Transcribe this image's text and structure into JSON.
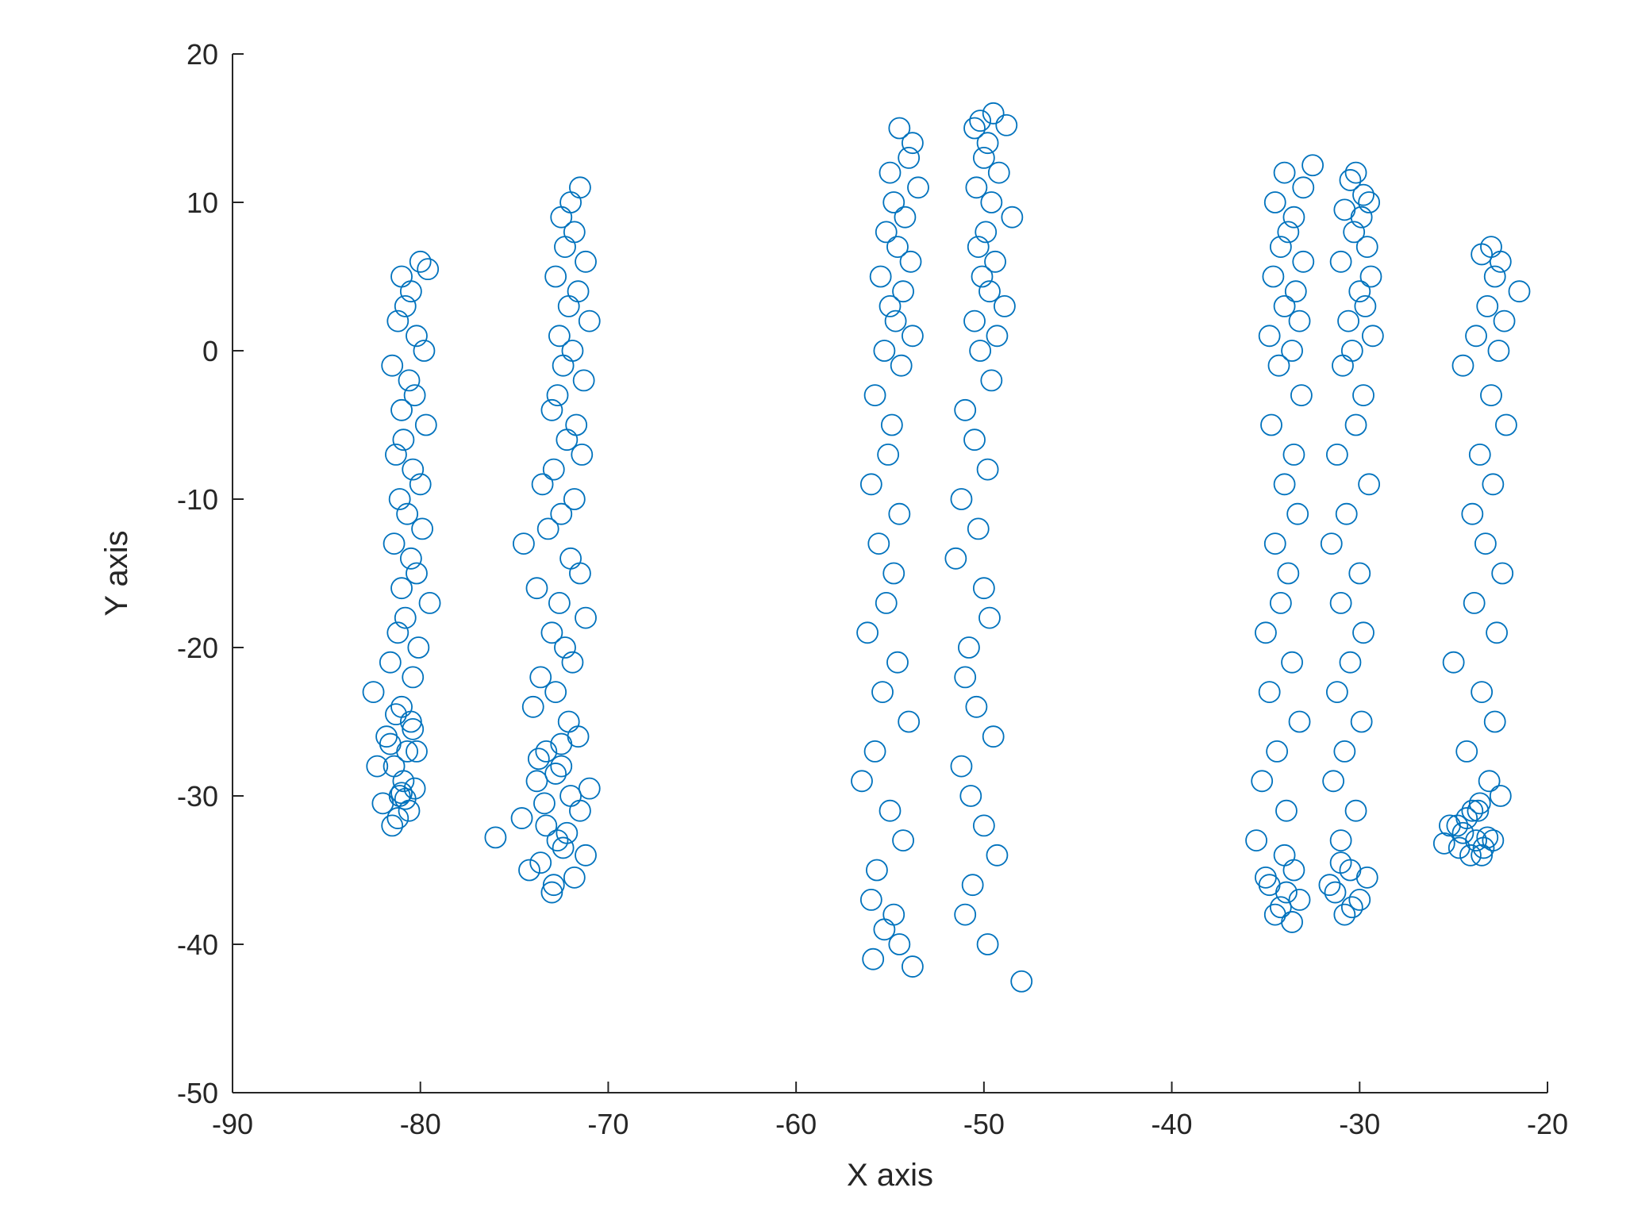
{
  "chart_data": {
    "type": "scatter",
    "title": "",
    "xlabel": "X axis",
    "ylabel": "Y axis",
    "xlim": [
      -90,
      -20
    ],
    "ylim": [
      -50,
      20
    ],
    "xticks": [
      -90,
      -80,
      -70,
      -60,
      -50,
      -40,
      -30,
      -20
    ],
    "yticks": [
      -50,
      -40,
      -30,
      -20,
      -10,
      0,
      10,
      20
    ],
    "grid": false,
    "marker": "circle-open",
    "color": "#0072BD",
    "x": [
      -81.0,
      -80.0,
      -79.6,
      -80.5,
      -80.8,
      -81.2,
      -80.2,
      -79.8,
      -81.5,
      -80.6,
      -80.3,
      -81.0,
      -79.7,
      -80.9,
      -81.3,
      -80.4,
      -80.0,
      -81.1,
      -80.7,
      -79.9,
      -81.4,
      -80.5,
      -80.2,
      -81.0,
      -79.5,
      -80.8,
      -81.2,
      -80.1,
      -81.6,
      -80.4,
      -82.5,
      -81.0,
      -80.5,
      -81.8,
      -80.2,
      -81.4,
      -80.9,
      -81.1,
      -80.6,
      -81.5,
      -82.0,
      -80.3,
      -81.2,
      -80.8,
      -81.0,
      -82.3,
      -80.7,
      -81.6,
      -80.4,
      -81.3,
      -72.0,
      -71.5,
      -72.5,
      -71.8,
      -72.3,
      -71.2,
      -72.8,
      -71.6,
      -72.1,
      -71.0,
      -72.6,
      -71.9,
      -72.4,
      -71.3,
      -72.7,
      -73.0,
      -71.7,
      -72.2,
      -71.4,
      -72.9,
      -73.5,
      -71.8,
      -72.5,
      -73.2,
      -74.5,
      -72.0,
      -71.5,
      -73.8,
      -72.6,
      -71.2,
      -73.0,
      -72.3,
      -71.9,
      -73.6,
      -72.8,
      -74.0,
      -72.1,
      -71.6,
      -73.3,
      -72.5,
      -73.8,
      -72.0,
      -71.5,
      -73.3,
      -72.7,
      -71.2,
      -74.2,
      -72.9,
      -73.6,
      -72.4,
      -71.8,
      -73.0,
      -72.2,
      -74.6,
      -76.0,
      -73.4,
      -71.0,
      -72.8,
      -73.7,
      -72.5,
      -54.5,
      -53.8,
      -54.0,
      -55.0,
      -53.5,
      -54.8,
      -54.2,
      -55.2,
      -54.6,
      -53.9,
      -55.5,
      -54.3,
      -55.0,
      -54.7,
      -53.8,
      -55.3,
      -54.4,
      -55.8,
      -54.9,
      -55.1,
      -56.0,
      -54.5,
      -55.6,
      -54.8,
      -55.2,
      -56.2,
      -54.6,
      -55.4,
      -54.0,
      -55.8,
      -56.5,
      -55.0,
      -54.3,
      -55.7,
      -56.0,
      -54.8,
      -55.3,
      -54.5,
      -55.9,
      -53.8,
      -50.2,
      -49.5,
      -50.5,
      -49.8,
      -48.8,
      -50.0,
      -49.2,
      -50.4,
      -49.6,
      -48.5,
      -49.9,
      -50.3,
      -49.4,
      -50.1,
      -49.7,
      -48.9,
      -50.5,
      -49.3,
      -50.2,
      -49.6,
      -51.0,
      -50.5,
      -49.8,
      -51.2,
      -50.3,
      -51.5,
      -50.0,
      -49.7,
      -50.8,
      -51.0,
      -50.4,
      -49.5,
      -51.2,
      -50.7,
      -50.0,
      -49.3,
      -50.6,
      -51.0,
      -49.8,
      -48.0,
      -34.0,
      -33.0,
      -32.5,
      -34.5,
      -33.5,
      -33.8,
      -34.2,
      -33.0,
      -34.6,
      -33.4,
      -34.0,
      -33.2,
      -34.8,
      -33.6,
      -34.3,
      -33.1,
      -34.7,
      -33.5,
      -34.0,
      -33.3,
      -34.5,
      -33.8,
      -34.2,
      -35.0,
      -33.6,
      -34.8,
      -33.2,
      -34.4,
      -35.2,
      -33.9,
      -35.5,
      -34.0,
      -33.5,
      -34.8,
      -33.2,
      -34.5,
      -33.9,
      -35.0,
      -34.2,
      -33.6,
      -30.5,
      -29.8,
      -30.2,
      -29.5,
      -30.8,
      -29.9,
      -30.3,
      -29.6,
      -31.0,
      -29.4,
      -30.0,
      -29.7,
      -30.6,
      -29.3,
      -30.4,
      -30.9,
      -29.8,
      -30.2,
      -31.2,
      -29.5,
      -30.7,
      -31.5,
      -30.0,
      -31.0,
      -29.8,
      -30.5,
      -31.2,
      -29.9,
      -30.8,
      -31.4,
      -30.2,
      -31.0,
      -30.5,
      -31.6,
      -30.0,
      -30.8,
      -31.3,
      -29.6,
      -30.4,
      -31.0,
      -23.0,
      -22.5,
      -23.5,
      -22.8,
      -21.5,
      -23.2,
      -22.3,
      -23.8,
      -22.6,
      -24.5,
      -23.0,
      -22.2,
      -23.6,
      -22.9,
      -24.0,
      -23.3,
      -22.4,
      -23.9,
      -22.7,
      -25.0,
      -23.5,
      -22.8,
      -24.3,
      -23.1,
      -22.5,
      -23.7,
      -24.8,
      -22.9,
      -23.4,
      -24.1,
      -24.5,
      -23.8,
      -25.2,
      -24.0,
      -23.5,
      -24.7,
      -23.2,
      -25.5,
      -24.3,
      -23.6
    ],
    "y": [
      5.0,
      6.0,
      5.5,
      4.0,
      3.0,
      2.0,
      1.0,
      0.0,
      -1.0,
      -2.0,
      -3.0,
      -4.0,
      -5.0,
      -6.0,
      -7.0,
      -8.0,
      -9.0,
      -10.0,
      -11.0,
      -12.0,
      -13.0,
      -14.0,
      -15.0,
      -16.0,
      -17.0,
      -18.0,
      -19.0,
      -20.0,
      -21.0,
      -22.0,
      -23.0,
      -24.0,
      -25.0,
      -26.0,
      -27.0,
      -28.0,
      -29.0,
      -30.0,
      -31.0,
      -32.0,
      -30.5,
      -29.5,
      -31.5,
      -30.2,
      -29.8,
      -28.0,
      -27.0,
      -26.5,
      -25.5,
      -24.5,
      10.0,
      11.0,
      9.0,
      8.0,
      7.0,
      6.0,
      5.0,
      4.0,
      3.0,
      2.0,
      1.0,
      0.0,
      -1.0,
      -2.0,
      -3.0,
      -4.0,
      -5.0,
      -6.0,
      -7.0,
      -8.0,
      -9.0,
      -10.0,
      -11.0,
      -12.0,
      -13.0,
      -14.0,
      -15.0,
      -16.0,
      -17.0,
      -18.0,
      -19.0,
      -20.0,
      -21.0,
      -22.0,
      -23.0,
      -24.0,
      -25.0,
      -26.0,
      -27.0,
      -28.0,
      -29.0,
      -30.0,
      -31.0,
      -32.0,
      -33.0,
      -34.0,
      -35.0,
      -36.0,
      -34.5,
      -33.5,
      -35.5,
      -36.5,
      -32.5,
      -31.5,
      -32.8,
      -30.5,
      -29.5,
      -28.5,
      -27.5,
      -26.5,
      15.0,
      14.0,
      13.0,
      12.0,
      11.0,
      10.0,
      9.0,
      8.0,
      7.0,
      6.0,
      5.0,
      4.0,
      3.0,
      2.0,
      1.0,
      0.0,
      -1.0,
      -3.0,
      -5.0,
      -7.0,
      -9.0,
      -11.0,
      -13.0,
      -15.0,
      -17.0,
      -19.0,
      -21.0,
      -23.0,
      -25.0,
      -27.0,
      -29.0,
      -31.0,
      -33.0,
      -35.0,
      -37.0,
      -38.0,
      -39.0,
      -40.0,
      -41.0,
      -41.5,
      15.5,
      16.0,
      15.0,
      14.0,
      15.2,
      13.0,
      12.0,
      11.0,
      10.0,
      9.0,
      8.0,
      7.0,
      6.0,
      5.0,
      4.0,
      3.0,
      2.0,
      1.0,
      0.0,
      -2.0,
      -4.0,
      -6.0,
      -8.0,
      -10.0,
      -12.0,
      -14.0,
      -16.0,
      -18.0,
      -20.0,
      -22.0,
      -24.0,
      -26.0,
      -28.0,
      -30.0,
      -32.0,
      -34.0,
      -36.0,
      -38.0,
      -40.0,
      -42.5,
      12.0,
      11.0,
      12.5,
      10.0,
      9.0,
      8.0,
      7.0,
      6.0,
      5.0,
      4.0,
      3.0,
      2.0,
      1.0,
      0.0,
      -1.0,
      -3.0,
      -5.0,
      -7.0,
      -9.0,
      -11.0,
      -13.0,
      -15.0,
      -17.0,
      -19.0,
      -21.0,
      -23.0,
      -25.0,
      -27.0,
      -29.0,
      -31.0,
      -33.0,
      -34.0,
      -35.0,
      -36.0,
      -37.0,
      -38.0,
      -36.5,
      -35.5,
      -37.5,
      -38.5,
      11.5,
      10.5,
      12.0,
      10.0,
      9.5,
      9.0,
      8.0,
      7.0,
      6.0,
      5.0,
      4.0,
      3.0,
      2.0,
      1.0,
      0.0,
      -1.0,
      -3.0,
      -5.0,
      -7.0,
      -9.0,
      -11.0,
      -13.0,
      -15.0,
      -17.0,
      -19.0,
      -21.0,
      -23.0,
      -25.0,
      -27.0,
      -29.0,
      -31.0,
      -33.0,
      -35.0,
      -36.0,
      -37.0,
      -38.0,
      -36.5,
      -35.5,
      -37.5,
      -34.5,
      7.0,
      6.0,
      6.5,
      5.0,
      4.0,
      3.0,
      2.0,
      1.0,
      0.0,
      -1.0,
      -3.0,
      -5.0,
      -7.0,
      -9.0,
      -11.0,
      -13.0,
      -15.0,
      -17.0,
      -19.0,
      -21.0,
      -23.0,
      -25.0,
      -27.0,
      -29.0,
      -30.0,
      -31.0,
      -32.0,
      -33.0,
      -33.5,
      -34.0,
      -32.5,
      -33.0,
      -32.0,
      -31.0,
      -34.0,
      -33.5,
      -32.8,
      -33.2,
      -31.5,
      -30.5
    ]
  }
}
